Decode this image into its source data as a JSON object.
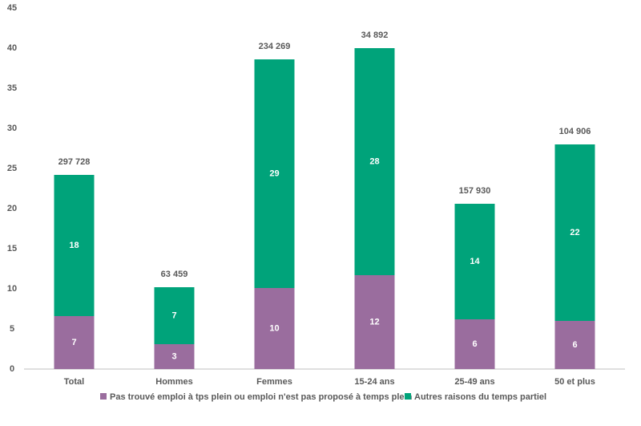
{
  "chart_data": {
    "type": "stacked_bar",
    "categories": [
      "Total",
      "Hommes",
      "Femmes",
      "15-24 ans",
      "25-49 ans",
      "50 et plus"
    ],
    "series": [
      {
        "name": "Pas trouvé emploi à tps plein ou emploi n'est pas proposé à temps plein",
        "color": "#9a6d9e",
        "values": [
          6.6,
          3.1,
          10.1,
          11.7,
          6.2,
          6.0
        ],
        "value_labels": [
          "7",
          "3",
          "10",
          "12",
          "6",
          "6"
        ]
      },
      {
        "name": "Autres raisons du temps partiel",
        "color": "#00a37a",
        "values": [
          17.6,
          7.1,
          28.5,
          28.3,
          14.4,
          22.0
        ],
        "value_labels": [
          "18",
          "7",
          "29",
          "28",
          "14",
          "22"
        ]
      }
    ],
    "annotations": [
      "297 728",
      "63 459",
      "234 269",
      "34 892",
      "157 930",
      "104 906"
    ],
    "ylim": [
      0,
      45
    ],
    "yticks": [
      0,
      5,
      10,
      15,
      20,
      25,
      30,
      35,
      40,
      45
    ],
    "grid": false,
    "legend": "bottom"
  }
}
